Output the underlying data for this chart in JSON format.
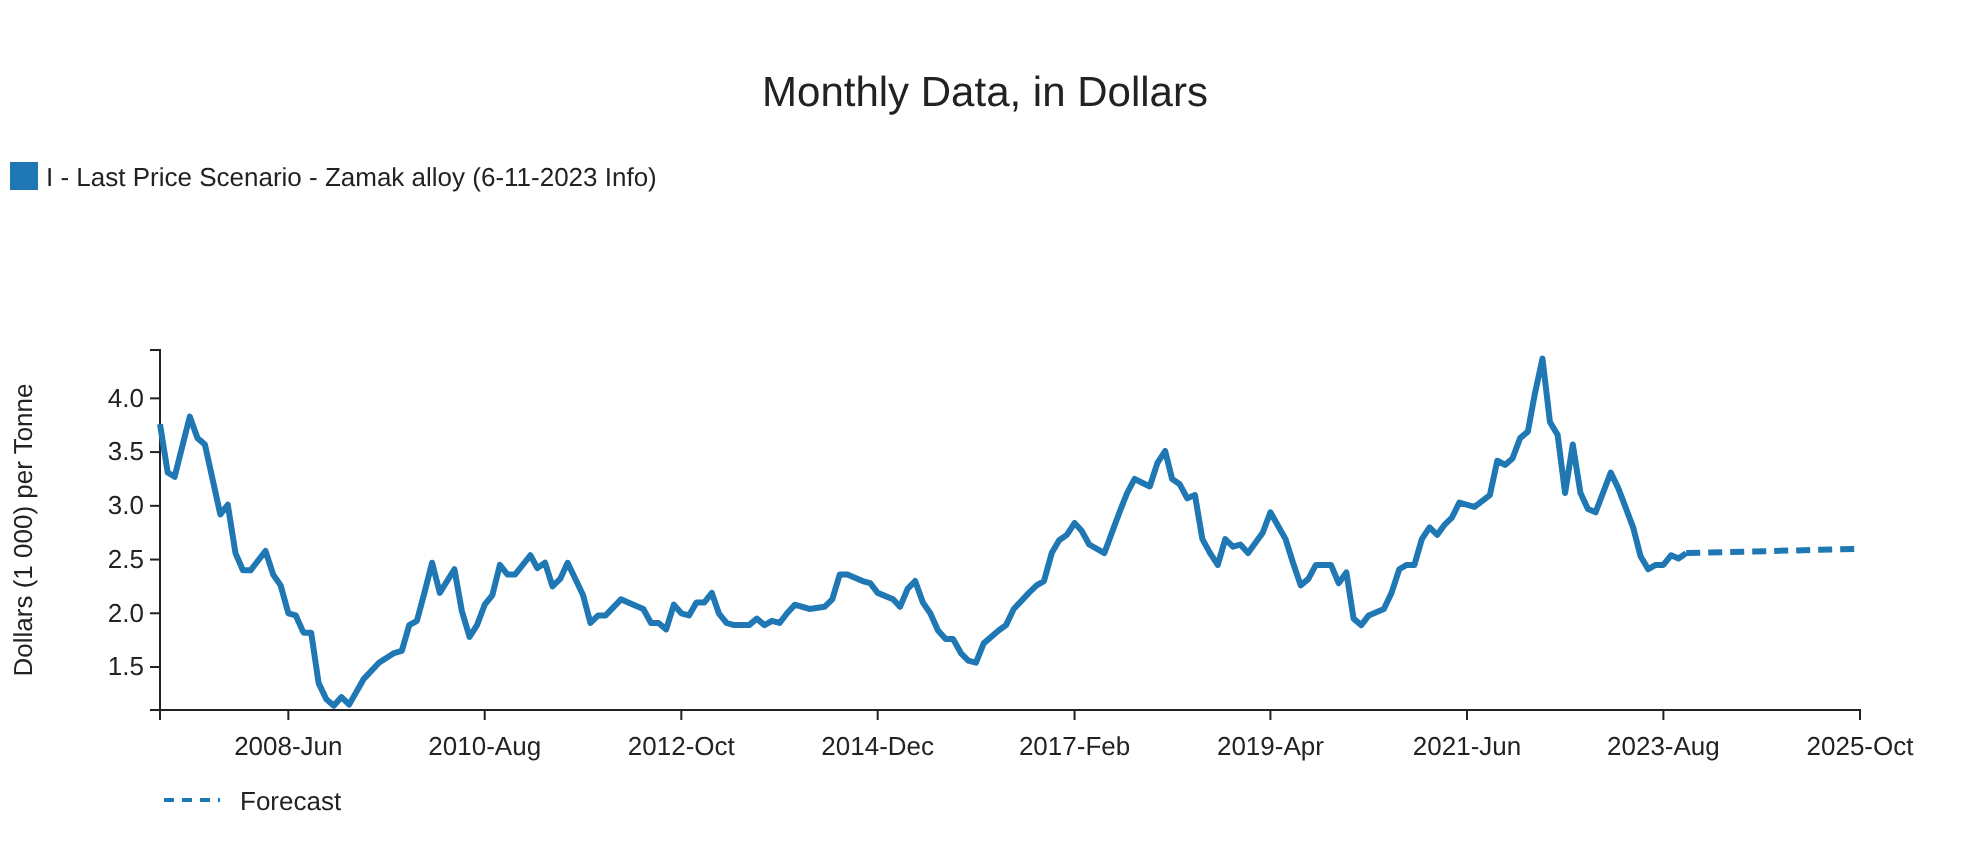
{
  "chart_data": {
    "type": "line",
    "title": "Monthly Data, in Dollars",
    "ylabel": "Dollars (1 000) per Tonne",
    "xlim": [
      "2007-01",
      "2025-10"
    ],
    "xticks": [
      {
        "value": "2007-01",
        "label": null
      },
      {
        "value": "2008-06",
        "label": "2008-Jun"
      },
      {
        "value": "2010-08",
        "label": "2010-Aug"
      },
      {
        "value": "2012-10",
        "label": "2012-Oct"
      },
      {
        "value": "2014-12",
        "label": "2014-Dec"
      },
      {
        "value": "2017-02",
        "label": "2017-Feb"
      },
      {
        "value": "2019-04",
        "label": "2019-Apr"
      },
      {
        "value": "2021-06",
        "label": "2021-Jun"
      },
      {
        "value": "2023-08",
        "label": "2023-Aug"
      },
      {
        "value": "2025-10",
        "label": "2025-Oct"
      }
    ],
    "ylim": [
      1.1,
      4.45
    ],
    "yticks": [
      {
        "value": 1.5,
        "label": "1.5"
      },
      {
        "value": 2,
        "label": "2.0"
      },
      {
        "value": 2.5,
        "label": "2.5"
      },
      {
        "value": 3,
        "label": "3.0"
      },
      {
        "value": 3.5,
        "label": "3.5"
      },
      {
        "value": 4,
        "label": "4.0"
      }
    ],
    "grid": false,
    "legend": "top left",
    "marker": "none",
    "series": [
      {
        "name": "I - Last Price Scenario - Zamak alloy (6-11-2023 Info)",
        "color": "#1f77b4",
        "line_style": "solid",
        "x": [
          "2007-01",
          "2007-02",
          "2007-03",
          "2007-05",
          "2007-06",
          "2007-07",
          "2007-09",
          "2007-10",
          "2007-11",
          "2007-12",
          "2008-01",
          "2008-03",
          "2008-04",
          "2008-05",
          "2008-06",
          "2008-07",
          "2008-08",
          "2008-09",
          "2008-10",
          "2008-11",
          "2008-12",
          "2009-01",
          "2009-02",
          "2009-04",
          "2009-06",
          "2009-08",
          "2009-09",
          "2009-10",
          "2009-11",
          "2009-12",
          "2010-01",
          "2010-02",
          "2010-04",
          "2010-05",
          "2010-06",
          "2010-07",
          "2010-08",
          "2010-09",
          "2010-10",
          "2010-11",
          "2010-12",
          "2011-02",
          "2011-03",
          "2011-04",
          "2011-05",
          "2011-06",
          "2011-07",
          "2011-09",
          "2011-10",
          "2011-11",
          "2011-12",
          "2012-02",
          "2012-03",
          "2012-05",
          "2012-06",
          "2012-07",
          "2012-08",
          "2012-09",
          "2012-10",
          "2012-11",
          "2012-12",
          "2013-01",
          "2013-02",
          "2013-03",
          "2013-04",
          "2013-05",
          "2013-07",
          "2013-08",
          "2013-09",
          "2013-10",
          "2013-11",
          "2013-12",
          "2014-01",
          "2014-02",
          "2014-03",
          "2014-05",
          "2014-06",
          "2014-07",
          "2014-08",
          "2014-10",
          "2014-11",
          "2014-12",
          "2015-02",
          "2015-03",
          "2015-04",
          "2015-05",
          "2015-06",
          "2015-07",
          "2015-08",
          "2015-09",
          "2015-10",
          "2015-11",
          "2015-12",
          "2016-01",
          "2016-02",
          "2016-04",
          "2016-05",
          "2016-06",
          "2016-08",
          "2016-09",
          "2016-10",
          "2016-11",
          "2016-12",
          "2017-01",
          "2017-02",
          "2017-03",
          "2017-04",
          "2017-06",
          "2017-08",
          "2017-09",
          "2017-10",
          "2017-12",
          "2018-01",
          "2018-02",
          "2018-03",
          "2018-04",
          "2018-05",
          "2018-06",
          "2018-07",
          "2018-08",
          "2018-09",
          "2018-10",
          "2018-11",
          "2018-12",
          "2019-01",
          "2019-03",
          "2019-04",
          "2019-06",
          "2019-07",
          "2019-08",
          "2019-09",
          "2019-10",
          "2019-12",
          "2020-01",
          "2020-02",
          "2020-03",
          "2020-04",
          "2020-05",
          "2020-07",
          "2020-08",
          "2020-09",
          "2020-10",
          "2020-11",
          "2020-12",
          "2021-01",
          "2021-02",
          "2021-03",
          "2021-04",
          "2021-05",
          "2021-07",
          "2021-09",
          "2021-10",
          "2021-11",
          "2021-12",
          "2022-01",
          "2022-02",
          "2022-03",
          "2022-04",
          "2022-05",
          "2022-06",
          "2022-07",
          "2022-08",
          "2022-09",
          "2022-10",
          "2022-11",
          "2023-01",
          "2023-02",
          "2023-04",
          "2023-05",
          "2023-06",
          "2023-07",
          "2023-08",
          "2023-09",
          "2023-10",
          "2023-11"
        ],
        "values": [
          3.76,
          3.31,
          3.27,
          3.83,
          3.63,
          3.57,
          2.92,
          3.01,
          2.56,
          2.4,
          2.4,
          2.58,
          2.36,
          2.26,
          2.0,
          1.98,
          1.82,
          1.82,
          1.35,
          1.2,
          1.14,
          1.22,
          1.15,
          1.39,
          1.54,
          1.63,
          1.65,
          1.89,
          1.93,
          2.19,
          2.47,
          2.19,
          2.41,
          2.02,
          1.78,
          1.89,
          2.08,
          2.17,
          2.45,
          2.36,
          2.36,
          2.54,
          2.42,
          2.47,
          2.25,
          2.32,
          2.47,
          2.17,
          1.91,
          1.98,
          1.98,
          2.13,
          2.1,
          2.04,
          1.91,
          1.91,
          1.85,
          2.08,
          2.0,
          1.98,
          2.1,
          2.1,
          2.19,
          2.0,
          1.91,
          1.89,
          1.89,
          1.95,
          1.89,
          1.93,
          1.91,
          2.0,
          2.08,
          2.06,
          2.04,
          2.06,
          2.13,
          2.36,
          2.36,
          2.3,
          2.28,
          2.19,
          2.13,
          2.06,
          2.23,
          2.3,
          2.1,
          2.0,
          1.84,
          1.76,
          1.76,
          1.63,
          1.56,
          1.54,
          1.72,
          1.84,
          1.89,
          2.04,
          2.19,
          2.26,
          2.3,
          2.56,
          2.68,
          2.73,
          2.84,
          2.77,
          2.64,
          2.56,
          2.94,
          3.12,
          3.25,
          3.18,
          3.4,
          3.51,
          3.25,
          3.2,
          3.07,
          3.1,
          2.69,
          2.56,
          2.45,
          2.69,
          2.62,
          2.64,
          2.56,
          2.75,
          2.94,
          2.69,
          2.47,
          2.26,
          2.32,
          2.45,
          2.45,
          2.28,
          2.38,
          1.95,
          1.89,
          1.98,
          2.04,
          2.19,
          2.41,
          2.45,
          2.45,
          2.69,
          2.8,
          2.73,
          2.82,
          2.89,
          3.03,
          2.99,
          3.1,
          3.42,
          3.38,
          3.44,
          3.63,
          3.69,
          4.04,
          4.37,
          3.78,
          3.66,
          3.12,
          3.57,
          3.12,
          2.97,
          2.94,
          3.31,
          3.16,
          2.8,
          2.53,
          2.41,
          2.45,
          2.45,
          2.54,
          2.51,
          2.56
        ]
      },
      {
        "name": "Forecast",
        "color": "#1f77b4",
        "line_style": "dashed",
        "x": [
          "2023-11",
          "2025-10"
        ],
        "values": [
          2.56,
          2.6
        ]
      }
    ]
  }
}
